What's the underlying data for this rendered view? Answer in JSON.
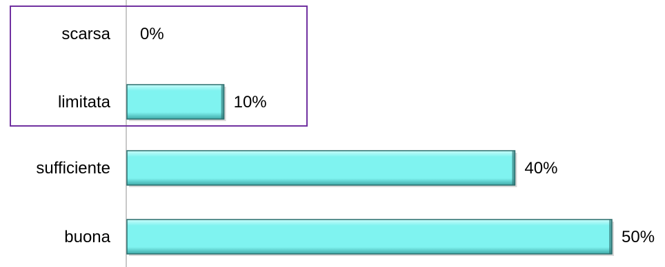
{
  "chart_data": {
    "type": "bar",
    "orientation": "horizontal",
    "categories": [
      "scarsa",
      "limitata",
      "sufficiente",
      "buona"
    ],
    "values": [
      0,
      10,
      40,
      50
    ],
    "value_labels": [
      "0%",
      "10%",
      "40%",
      "50%"
    ],
    "unit": "%",
    "xlim": [
      0,
      50
    ],
    "grid": false,
    "legend": "none",
    "colors": {
      "bar_fill": "#7ff3f0",
      "bar_highlight": "#c9fbfa",
      "bar_shadow": "#3fa9a8",
      "bar_edge": "#2b6d6c",
      "axis": "#c8c8c8",
      "highlight_box": "#7030a0"
    },
    "highlighted_categories": [
      "scarsa",
      "limitata"
    ]
  }
}
